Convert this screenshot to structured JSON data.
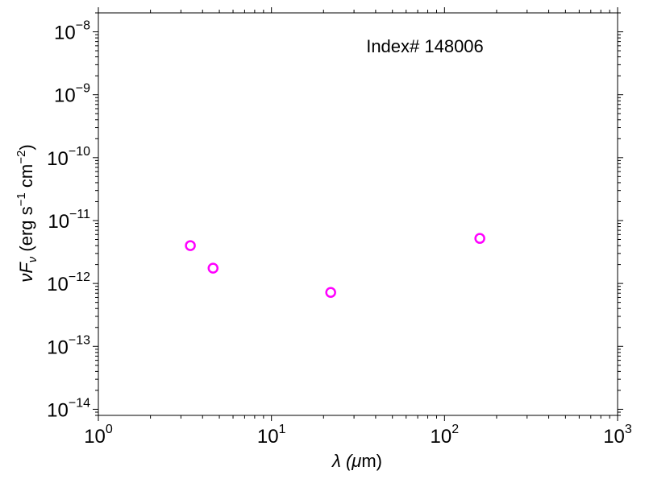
{
  "chart_data": {
    "type": "scatter",
    "title": "",
    "annotation": "Index# 148006",
    "xlabel": {
      "main": "λ (",
      "mu": "μ",
      "rest": "m)"
    },
    "ylabel": {
      "nu": "ν",
      "F": "F",
      "sub": "ν",
      "open": " (erg s",
      "exp1": "−1",
      "mid": " cm",
      "exp2": "−2",
      "close": ")"
    },
    "xscale": "log",
    "yscale": "log",
    "xlim": [
      1,
      1000
    ],
    "ylim": [
      8e-15,
      2e-08
    ],
    "x_ticks": [
      {
        "base": "10",
        "exp": "0",
        "value": 1
      },
      {
        "base": "10",
        "exp": "1",
        "value": 10
      },
      {
        "base": "10",
        "exp": "2",
        "value": 100
      },
      {
        "base": "10",
        "exp": "3",
        "value": 1000
      }
    ],
    "y_ticks": [
      {
        "base": "10",
        "exp": "−14",
        "value": 1e-14
      },
      {
        "base": "10",
        "exp": "−13",
        "value": 1e-13
      },
      {
        "base": "10",
        "exp": "−12",
        "value": 1e-12
      },
      {
        "base": "10",
        "exp": "−11",
        "value": 1e-11
      },
      {
        "base": "10",
        "exp": "−10",
        "value": 1e-10
      },
      {
        "base": "10",
        "exp": "−9",
        "value": 1e-09
      },
      {
        "base": "10",
        "exp": "−8",
        "value": 1e-08
      }
    ],
    "marker_color": "#ff00ff",
    "series": [
      {
        "x": [
          3.4,
          4.6,
          22,
          160
        ],
        "y": [
          4e-12,
          1.75e-12,
          7.2e-13,
          5.2e-12
        ]
      }
    ],
    "grid": false,
    "legend": "none"
  }
}
